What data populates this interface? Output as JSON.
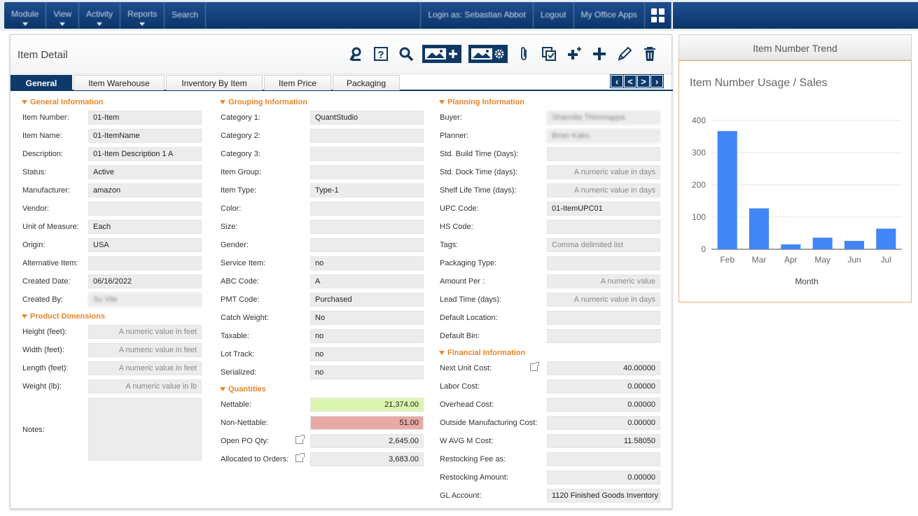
{
  "nav": {
    "module": "Module",
    "view": "View",
    "activity": "Activity",
    "reports": "Reports",
    "search": "Search",
    "login": "Login as: Sebastian Abbot",
    "logout": "Logout",
    "my_office_apps": "My Office Apps"
  },
  "panel": {
    "title": "Item Detail"
  },
  "tabs": [
    "General",
    "Item Warehouse",
    "Inventory By Item",
    "Item Price",
    "Packaging"
  ],
  "general": {
    "title": "General Information",
    "item_number": {
      "label": "Item Number:",
      "value": "01-Item"
    },
    "item_name": {
      "label": "Item Name:",
      "value": "01-ItemName"
    },
    "description": {
      "label": "Description:",
      "value": "01-Item Description 1 A"
    },
    "status": {
      "label": "Status:",
      "value": "Active"
    },
    "manufacturer": {
      "label": "Manufacturer:",
      "value": "amazon"
    },
    "vendor": {
      "label": "Vendor:",
      "value": ""
    },
    "uom": {
      "label": "Unit of Measure:",
      "value": "Each"
    },
    "origin": {
      "label": "Origin:",
      "value": "USA"
    },
    "alt_item": {
      "label": "Alternative Item:",
      "value": ""
    },
    "created_date": {
      "label": "Created Date:",
      "value": "06/16/2022"
    },
    "created_by": {
      "label": "Created By:",
      "value": "Su Vile"
    }
  },
  "dims": {
    "title": "Product Dimensions",
    "height": {
      "label": "Height (feet):",
      "placeholder": "A numeric value in feet"
    },
    "width": {
      "label": "Width (feet):",
      "placeholder": "A numeric value in feet"
    },
    "length": {
      "label": "Length (feet):",
      "placeholder": "A numeric value in feet"
    },
    "weight": {
      "label": "Weight (lb):",
      "placeholder": "A numeric value in lb"
    },
    "notes": {
      "label": "Notes:",
      "value": ""
    }
  },
  "grouping": {
    "title": "Grouping Information",
    "cat1": {
      "label": "Category 1:",
      "value": "QuantStudio"
    },
    "cat2": {
      "label": "Category 2:",
      "value": ""
    },
    "cat3": {
      "label": "Category 3:",
      "value": ""
    },
    "item_group": {
      "label": "Item Group:",
      "value": ""
    },
    "item_type": {
      "label": "Item Type:",
      "value": "Type-1"
    },
    "color": {
      "label": "Color:",
      "value": ""
    },
    "size": {
      "label": "Size:",
      "value": ""
    },
    "gender": {
      "label": "Gender:",
      "value": ""
    },
    "service_item": {
      "label": "Service Item:",
      "value": "no"
    },
    "abc_code": {
      "label": "ABC Code:",
      "value": "A"
    },
    "pmt_code": {
      "label": "PMT Code:",
      "value": "Purchased"
    },
    "catch_weight": {
      "label": "Catch Weight:",
      "value": "No"
    },
    "taxable": {
      "label": "Taxable:",
      "value": "no"
    },
    "lot_track": {
      "label": "Lot Track:",
      "value": "no"
    },
    "serialized": {
      "label": "Serialized:",
      "value": "no"
    }
  },
  "quantities": {
    "title": "Quantities",
    "nettable": {
      "label": "Nettable:",
      "value": "21,374.00",
      "color": "#dcf5b0"
    },
    "non_nettable": {
      "label": "Non-Nettable:",
      "value": "51.00",
      "color": "#e8aaa5"
    },
    "open_po": {
      "label": "Open PO Qty:",
      "value": "2,645.00"
    },
    "allocated": {
      "label": "Allocated to Orders:",
      "value": "3,683.00"
    }
  },
  "planning": {
    "title": "Planning Information",
    "buyer": {
      "label": "Buyer:",
      "value": "Shannita Thimmappa"
    },
    "planner": {
      "label": "Planner:",
      "value": "Brian Kaku"
    },
    "build_time": {
      "label": "Std. Build Time (Days):",
      "value": ""
    },
    "dock_time": {
      "label": "Std. Dock Time (days):",
      "placeholder": "A numeric value in days"
    },
    "shelf_life": {
      "label": "Shelf Life Time (days):",
      "placeholder": "A numeric value in days"
    },
    "upc": {
      "label": "UPC Code:",
      "value": "01-ItemUPC01"
    },
    "hs_code": {
      "label": "HS Code:",
      "value": ""
    },
    "tags": {
      "label": "Tags:",
      "placeholder": "Comma delimited list"
    },
    "packaging_type": {
      "label": "Packaging Type:",
      "value": ""
    },
    "amount_per": {
      "label": "Amount Per :",
      "placeholder": "A numeric value"
    },
    "lead_time": {
      "label": "Lead Time (days):",
      "placeholder": "A numeric value in days"
    },
    "default_location": {
      "label": "Default Location:",
      "value": ""
    },
    "default_bin": {
      "label": "Default Bin:",
      "value": ""
    }
  },
  "financial": {
    "title": "Financial Information",
    "next_unit_cost": {
      "label": "Next Unit Cost:",
      "value": "40.00000"
    },
    "labor_cost": {
      "label": "Labor Cost:",
      "value": "0.00000"
    },
    "overhead_cost": {
      "label": "Overhead Cost:",
      "value": "0.00000"
    },
    "outside_mfg": {
      "label": "Outside Manufacturing Cost:",
      "value": "0.00000"
    },
    "wavg": {
      "label": "W AVG M Cost:",
      "value": "11.58050"
    },
    "restock_fee": {
      "label": "Restocking Fee as:",
      "value": ""
    },
    "restock_amount": {
      "label": "Restocking Amount:",
      "value": "0.00000"
    },
    "gl_account": {
      "label": "GL Account:",
      "value": "1120 Finished Goods Inventory"
    }
  },
  "trend": {
    "header": "Item Number Trend"
  },
  "chart_data": {
    "type": "bar",
    "title": "Item Number Usage / Sales",
    "xlabel": "Month",
    "ylabel": "",
    "categories": [
      "Feb",
      "Mar",
      "Apr",
      "May",
      "Jun",
      "Jul"
    ],
    "values": [
      367,
      127,
      15,
      36,
      26,
      64
    ],
    "ylim": [
      0,
      400
    ],
    "yticks": [
      0,
      100,
      200,
      300,
      400
    ],
    "color": "#4285f4",
    "grid": true
  }
}
